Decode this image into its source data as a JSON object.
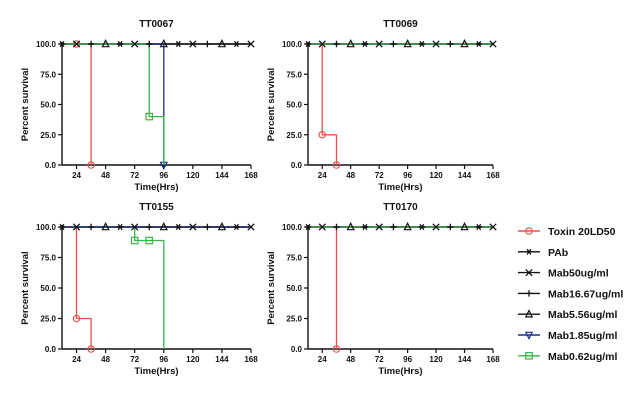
{
  "chart_data": [
    {
      "type": "line",
      "title": "TT0067",
      "xlabel": "Time(Hrs)",
      "ylabel": "Percent survival",
      "xlim": [
        12,
        168
      ],
      "ylim": [
        0,
        100
      ],
      "xticks": [
        24,
        48,
        72,
        96,
        120,
        144,
        168
      ],
      "xtick_labels": [
        "24",
        "48",
        "72",
        "96",
        "120",
        "144",
        "168"
      ],
      "yticks": [
        0,
        25,
        50,
        75,
        100
      ],
      "ytick_labels": [
        "0.0",
        "25.0",
        "50.0",
        "75.0",
        "100.0"
      ],
      "series": [
        {
          "name": "Toxin 20LD50",
          "x": [
            12,
            36,
            36
          ],
          "y": [
            100,
            100,
            0
          ],
          "censored": [
            [
              24,
              100
            ]
          ],
          "end": [
            36,
            0
          ]
        },
        {
          "name": "Mab1.85ug/ml",
          "x": [
            12,
            96,
            96
          ],
          "y": [
            100,
            100,
            0
          ],
          "censored": [],
          "end": [
            96,
            0
          ]
        },
        {
          "name": "Mab0.62ug/ml",
          "x": [
            12,
            84,
            84,
            96,
            96
          ],
          "y": [
            100,
            100,
            40,
            40,
            0
          ],
          "censored": [
            [
              84,
              40
            ]
          ],
          "end": null
        },
        {
          "name": "PAb",
          "x": [
            12,
            168
          ],
          "y": [
            100,
            100
          ],
          "censored": [],
          "end": null
        },
        {
          "name": "Mab50ug/ml",
          "x": [
            12,
            168
          ],
          "y": [
            100,
            100
          ],
          "censored": [],
          "end": null
        },
        {
          "name": "Mab16.67ug/ml",
          "x": [
            12,
            168
          ],
          "y": [
            100,
            100
          ],
          "censored": [],
          "end": null
        },
        {
          "name": "Mab5.56ug/ml",
          "x": [
            12,
            168
          ],
          "y": [
            100,
            100
          ],
          "censored": [],
          "end": null
        }
      ]
    },
    {
      "type": "line",
      "title": "TT0069",
      "xlabel": "Time(Hrs)",
      "ylabel": "Percent survival",
      "xlim": [
        12,
        168
      ],
      "ylim": [
        0,
        100
      ],
      "xticks": [
        24,
        48,
        72,
        96,
        120,
        144,
        168
      ],
      "xtick_labels": [
        "24",
        "48",
        "72",
        "96",
        "120",
        "144",
        "168"
      ],
      "yticks": [
        0,
        25,
        50,
        75,
        100
      ],
      "ytick_labels": [
        "0.0",
        "25.0",
        "50.0",
        "75.0",
        "100.0"
      ],
      "series": [
        {
          "name": "Toxin 20LD50",
          "x": [
            12,
            24,
            24,
            36,
            36
          ],
          "y": [
            100,
            100,
            25,
            25,
            0
          ],
          "censored": [
            [
              24,
              25
            ]
          ],
          "end": [
            36,
            0
          ]
        },
        {
          "name": "Mab1.85ug/ml",
          "x": [
            12,
            168
          ],
          "y": [
            100,
            100
          ],
          "censored": [],
          "end": null
        },
        {
          "name": "Mab0.62ug/ml",
          "x": [
            12,
            168
          ],
          "y": [
            100,
            100
          ],
          "censored": [],
          "end": null
        },
        {
          "name": "PAb",
          "x": [
            12,
            168
          ],
          "y": [
            100,
            100
          ],
          "censored": [],
          "end": null
        },
        {
          "name": "Mab50ug/ml",
          "x": [
            12,
            168
          ],
          "y": [
            100,
            100
          ],
          "censored": [],
          "end": null
        },
        {
          "name": "Mab16.67ug/ml",
          "x": [
            12,
            168
          ],
          "y": [
            100,
            100
          ],
          "censored": [],
          "end": null
        },
        {
          "name": "Mab5.56ug/ml",
          "x": [
            12,
            168
          ],
          "y": [
            100,
            100
          ],
          "censored": [],
          "end": null
        }
      ]
    },
    {
      "type": "line",
      "title": "TT0155",
      "xlabel": "Time(Hrs)",
      "ylabel": "Percent survival",
      "xlim": [
        12,
        168
      ],
      "ylim": [
        0,
        100
      ],
      "xticks": [
        24,
        48,
        72,
        96,
        120,
        144,
        168
      ],
      "xtick_labels": [
        "24",
        "48",
        "72",
        "96",
        "120",
        "144",
        "168"
      ],
      "yticks": [
        0,
        25,
        50,
        75,
        100
      ],
      "ytick_labels": [
        "0.0",
        "25.0",
        "50.0",
        "75.0",
        "100.0"
      ],
      "series": [
        {
          "name": "Toxin 20LD50",
          "x": [
            12,
            24,
            24,
            36,
            36
          ],
          "y": [
            100,
            100,
            25,
            25,
            0
          ],
          "censored": [
            [
              24,
              25
            ]
          ],
          "end": [
            36,
            0
          ]
        },
        {
          "name": "Mab0.62ug/ml",
          "x": [
            12,
            72,
            72,
            96,
            96
          ],
          "y": [
            100,
            100,
            88.9,
            88.9,
            0
          ],
          "censored": [
            [
              72,
              88.9
            ],
            [
              84,
              88.9
            ]
          ],
          "end": null
        },
        {
          "name": "Mab1.85ug/ml",
          "x": [
            12,
            168
          ],
          "y": [
            100,
            100
          ],
          "censored": [],
          "end": null
        },
        {
          "name": "PAb",
          "x": [
            12,
            168
          ],
          "y": [
            100,
            100
          ],
          "censored": [],
          "end": null
        },
        {
          "name": "Mab50ug/ml",
          "x": [
            12,
            168
          ],
          "y": [
            100,
            100
          ],
          "censored": [],
          "end": null
        },
        {
          "name": "Mab16.67ug/ml",
          "x": [
            12,
            168
          ],
          "y": [
            100,
            100
          ],
          "censored": [],
          "end": null
        },
        {
          "name": "Mab5.56ug/ml",
          "x": [
            12,
            168
          ],
          "y": [
            100,
            100
          ],
          "censored": [],
          "end": null
        }
      ]
    },
    {
      "type": "line",
      "title": "TT0170",
      "xlabel": "Time(Hrs)",
      "ylabel": "Percent survival",
      "xlim": [
        12,
        168
      ],
      "ylim": [
        0,
        100
      ],
      "xticks": [
        24,
        48,
        72,
        96,
        120,
        144,
        168
      ],
      "xtick_labels": [
        "24",
        "48",
        "72",
        "96",
        "120",
        "144",
        "168"
      ],
      "yticks": [
        0,
        25,
        50,
        75,
        100
      ],
      "ytick_labels": [
        "0.0",
        "25.0",
        "50.0",
        "75.0",
        "100.0"
      ],
      "series": [
        {
          "name": "Toxin 20LD50",
          "x": [
            12,
            36,
            36
          ],
          "y": [
            100,
            100,
            0
          ],
          "censored": [],
          "end": [
            36,
            0
          ]
        },
        {
          "name": "Mab1.85ug/ml",
          "x": [
            12,
            168
          ],
          "y": [
            100,
            100
          ],
          "censored": [],
          "end": null
        },
        {
          "name": "Mab0.62ug/ml",
          "x": [
            12,
            168
          ],
          "y": [
            100,
            100
          ],
          "censored": [],
          "end": null
        },
        {
          "name": "PAb",
          "x": [
            12,
            168
          ],
          "y": [
            100,
            100
          ],
          "censored": [],
          "end": null
        },
        {
          "name": "Mab50ug/ml",
          "x": [
            12,
            168
          ],
          "y": [
            100,
            100
          ],
          "censored": [],
          "end": null
        },
        {
          "name": "Mab16.67ug/ml",
          "x": [
            12,
            168
          ],
          "y": [
            100,
            100
          ],
          "censored": [],
          "end": null
        },
        {
          "name": "Mab5.56ug/ml",
          "x": [
            12,
            168
          ],
          "y": [
            100,
            100
          ],
          "censored": [],
          "end": null
        }
      ]
    }
  ],
  "legend": {
    "placement": "right",
    "items": [
      {
        "label": "Toxin 20LD50",
        "color": "#e8514f",
        "marker": "circle-icon"
      },
      {
        "label": "PAb",
        "color": "#111111",
        "marker": "asterisk-icon"
      },
      {
        "label": "Mab50ug/ml",
        "color": "#111111",
        "marker": "x-cross-icon"
      },
      {
        "label": "Mab16.67ug/ml",
        "color": "#111111",
        "marker": "plus-icon"
      },
      {
        "label": "Mab5.56ug/ml",
        "color": "#111111",
        "marker": "triangle-up-icon"
      },
      {
        "label": "Mab1.85ug/ml",
        "color": "#1e2a8c",
        "marker": "triangle-down-icon"
      },
      {
        "label": "Mab0.62ug/ml",
        "color": "#3ab44a",
        "marker": "square-icon"
      }
    ]
  }
}
